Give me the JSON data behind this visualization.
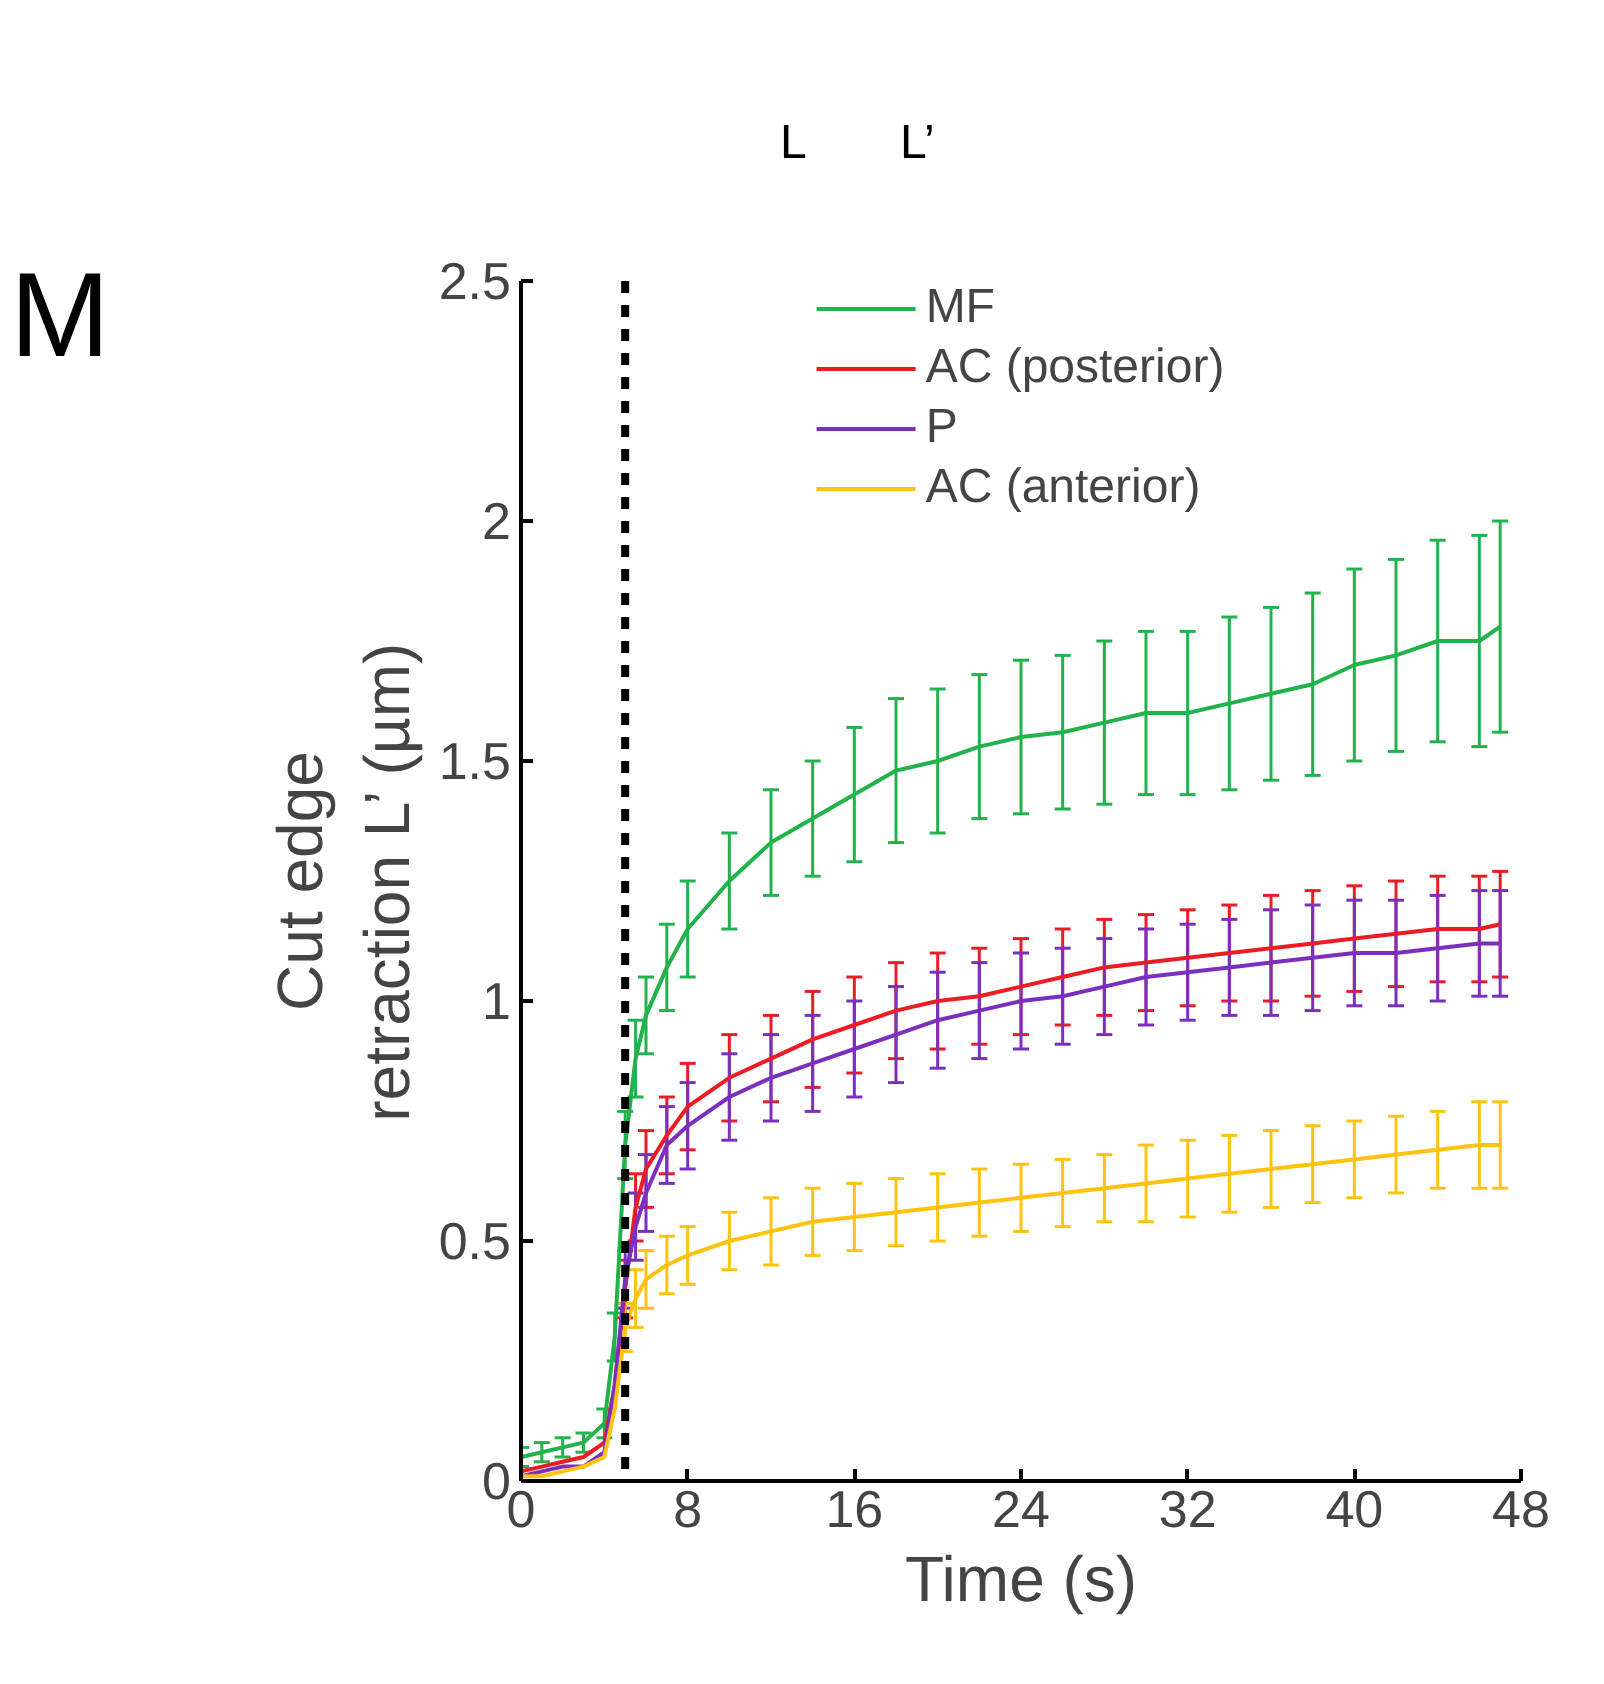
{
  "chart_data": {
    "type": "line",
    "xlabel": "Time (s)",
    "ylabel": "Cut edge\nretraction L’ (µm)",
    "annotations": [
      "M",
      "L",
      "L’"
    ],
    "x": [
      0,
      1,
      2,
      3,
      4,
      4.5,
      5,
      5.5,
      6,
      7,
      8,
      10,
      12,
      14,
      16,
      18,
      20,
      22,
      24,
      26,
      28,
      30,
      32,
      34,
      36,
      38,
      40,
      42,
      44,
      46,
      47
    ],
    "series": [
      {
        "name": "MF",
        "color": "#22b24c",
        "values": [
          0.05,
          0.06,
          0.07,
          0.08,
          0.12,
          0.3,
          0.7,
          0.88,
          0.97,
          1.07,
          1.15,
          1.25,
          1.33,
          1.38,
          1.43,
          1.48,
          1.5,
          1.53,
          1.55,
          1.56,
          1.58,
          1.6,
          1.6,
          1.62,
          1.64,
          1.66,
          1.7,
          1.72,
          1.75,
          1.75,
          1.78
        ],
        "errors": [
          0.02,
          0.02,
          0.02,
          0.02,
          0.03,
          0.05,
          0.07,
          0.08,
          0.08,
          0.09,
          0.1,
          0.1,
          0.11,
          0.12,
          0.14,
          0.15,
          0.15,
          0.15,
          0.16,
          0.16,
          0.17,
          0.17,
          0.17,
          0.18,
          0.18,
          0.19,
          0.2,
          0.2,
          0.21,
          0.22,
          0.22
        ]
      },
      {
        "name": "AC (posterior)",
        "color": "#ed1c24",
        "values": [
          0.02,
          0.03,
          0.04,
          0.05,
          0.08,
          0.2,
          0.4,
          0.57,
          0.65,
          0.72,
          0.78,
          0.84,
          0.88,
          0.92,
          0.95,
          0.98,
          1.0,
          1.01,
          1.03,
          1.05,
          1.07,
          1.08,
          1.09,
          1.1,
          1.11,
          1.12,
          1.13,
          1.14,
          1.15,
          1.15,
          1.16
        ],
        "errors": [
          null,
          null,
          null,
          null,
          null,
          null,
          0.06,
          0.07,
          0.08,
          0.08,
          0.09,
          0.09,
          0.09,
          0.1,
          0.1,
          0.1,
          0.1,
          0.1,
          0.1,
          0.1,
          0.1,
          0.1,
          0.1,
          0.1,
          0.11,
          0.11,
          0.11,
          0.11,
          0.11,
          0.11,
          0.11
        ]
      },
      {
        "name": "P",
        "color": "#7b2fbe",
        "values": [
          0.01,
          0.02,
          0.03,
          0.03,
          0.06,
          0.2,
          0.42,
          0.53,
          0.6,
          0.7,
          0.74,
          0.8,
          0.84,
          0.87,
          0.9,
          0.93,
          0.96,
          0.98,
          1.0,
          1.01,
          1.03,
          1.05,
          1.06,
          1.07,
          1.08,
          1.09,
          1.1,
          1.1,
          1.11,
          1.12,
          1.12
        ],
        "errors": [
          null,
          null,
          null,
          null,
          null,
          null,
          0.06,
          0.07,
          0.08,
          0.08,
          0.09,
          0.09,
          0.09,
          0.1,
          0.1,
          0.1,
          0.1,
          0.1,
          0.1,
          0.1,
          0.1,
          0.1,
          0.1,
          0.1,
          0.11,
          0.11,
          0.11,
          0.11,
          0.11,
          0.11,
          0.11
        ]
      },
      {
        "name": "AC (anterior)",
        "color": "#ffc20e",
        "values": [
          0.01,
          0.01,
          0.02,
          0.03,
          0.05,
          0.15,
          0.32,
          0.38,
          0.42,
          0.45,
          0.47,
          0.5,
          0.52,
          0.54,
          0.55,
          0.56,
          0.57,
          0.58,
          0.59,
          0.6,
          0.61,
          0.62,
          0.63,
          0.64,
          0.65,
          0.66,
          0.67,
          0.68,
          0.69,
          0.7,
          0.7
        ],
        "errors": [
          null,
          null,
          null,
          null,
          null,
          null,
          0.05,
          0.06,
          0.06,
          0.06,
          0.06,
          0.06,
          0.07,
          0.07,
          0.07,
          0.07,
          0.07,
          0.07,
          0.07,
          0.07,
          0.07,
          0.08,
          0.08,
          0.08,
          0.08,
          0.08,
          0.08,
          0.08,
          0.08,
          0.09,
          0.09
        ]
      }
    ],
    "xlim": [
      0,
      48
    ],
    "ylim": [
      0,
      2.5
    ],
    "xticks": [
      0,
      8,
      16,
      24,
      32,
      40,
      48
    ],
    "yticks": [
      0,
      0.5,
      1,
      1.5,
      2,
      2.5
    ],
    "ref_lines": [
      {
        "axis": "x",
        "value": 5,
        "label": null,
        "color": "#000000",
        "line_style": "dashed"
      }
    ],
    "grid": false,
    "legend": "top",
    "marker": "none",
    "line_style": "solid"
  }
}
